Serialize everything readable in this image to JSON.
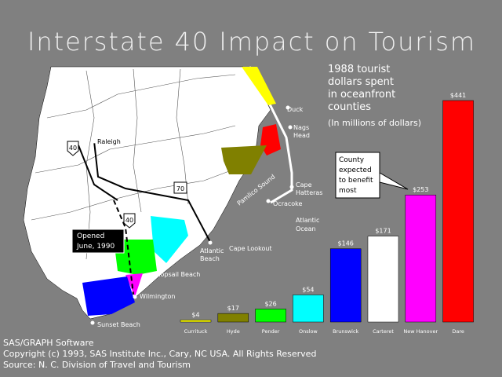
{
  "chart_data": {
    "type": "bar",
    "title": "Interstate 40 Impact on Tourism",
    "subtitle": [
      "1988 tourist",
      "dollars spent",
      "in oceanfront",
      "counties",
      "(In millions of dollars)"
    ],
    "categories": [
      "Currituck",
      "Hyde",
      "Pender",
      "Onslow",
      "Brunswick",
      "Carteret",
      "New Hanover",
      "Dare"
    ],
    "values": [
      4,
      17,
      26,
      54,
      146,
      171,
      253,
      441
    ],
    "value_labels": [
      "$4",
      "$17",
      "$26",
      "$54",
      "$146",
      "$171",
      "$253",
      "$441"
    ],
    "colors": [
      "#ffff00",
      "#808000",
      "#00ff00",
      "#00ffff",
      "#0000ff",
      "#ffffff",
      "#ff00ff",
      "#ff0000"
    ]
  },
  "callout": [
    "County",
    "expected",
    "to benefit",
    "most"
  ],
  "opened": [
    "Opened",
    "June, 1990"
  ],
  "map_labels": {
    "raleigh": "Raleigh",
    "duck": "Duck",
    "nags": [
      "Nags",
      "Head"
    ],
    "hatteras": [
      "Cape",
      "Hatteras"
    ],
    "ocracoke": "Ocracoke",
    "pamlico": "Pamlico Sound",
    "ocean": [
      "Atlantic",
      "Ocean"
    ],
    "lookout": "Cape Lookout",
    "abeach": [
      "Atlantic",
      "Beach"
    ],
    "topsail": "Topsail Beach",
    "wilmington": "Wilmington",
    "sunset": "Sunset Beach",
    "i40a": "40",
    "us70": "70",
    "i40b": "40"
  },
  "footer": [
    "SAS/GRAPH  Software",
    "Copyright (c) 1993, SAS Institute Inc., Cary, NC USA. All Rights Reserved",
    "Source: N. C. Division of Travel and Tourism"
  ]
}
